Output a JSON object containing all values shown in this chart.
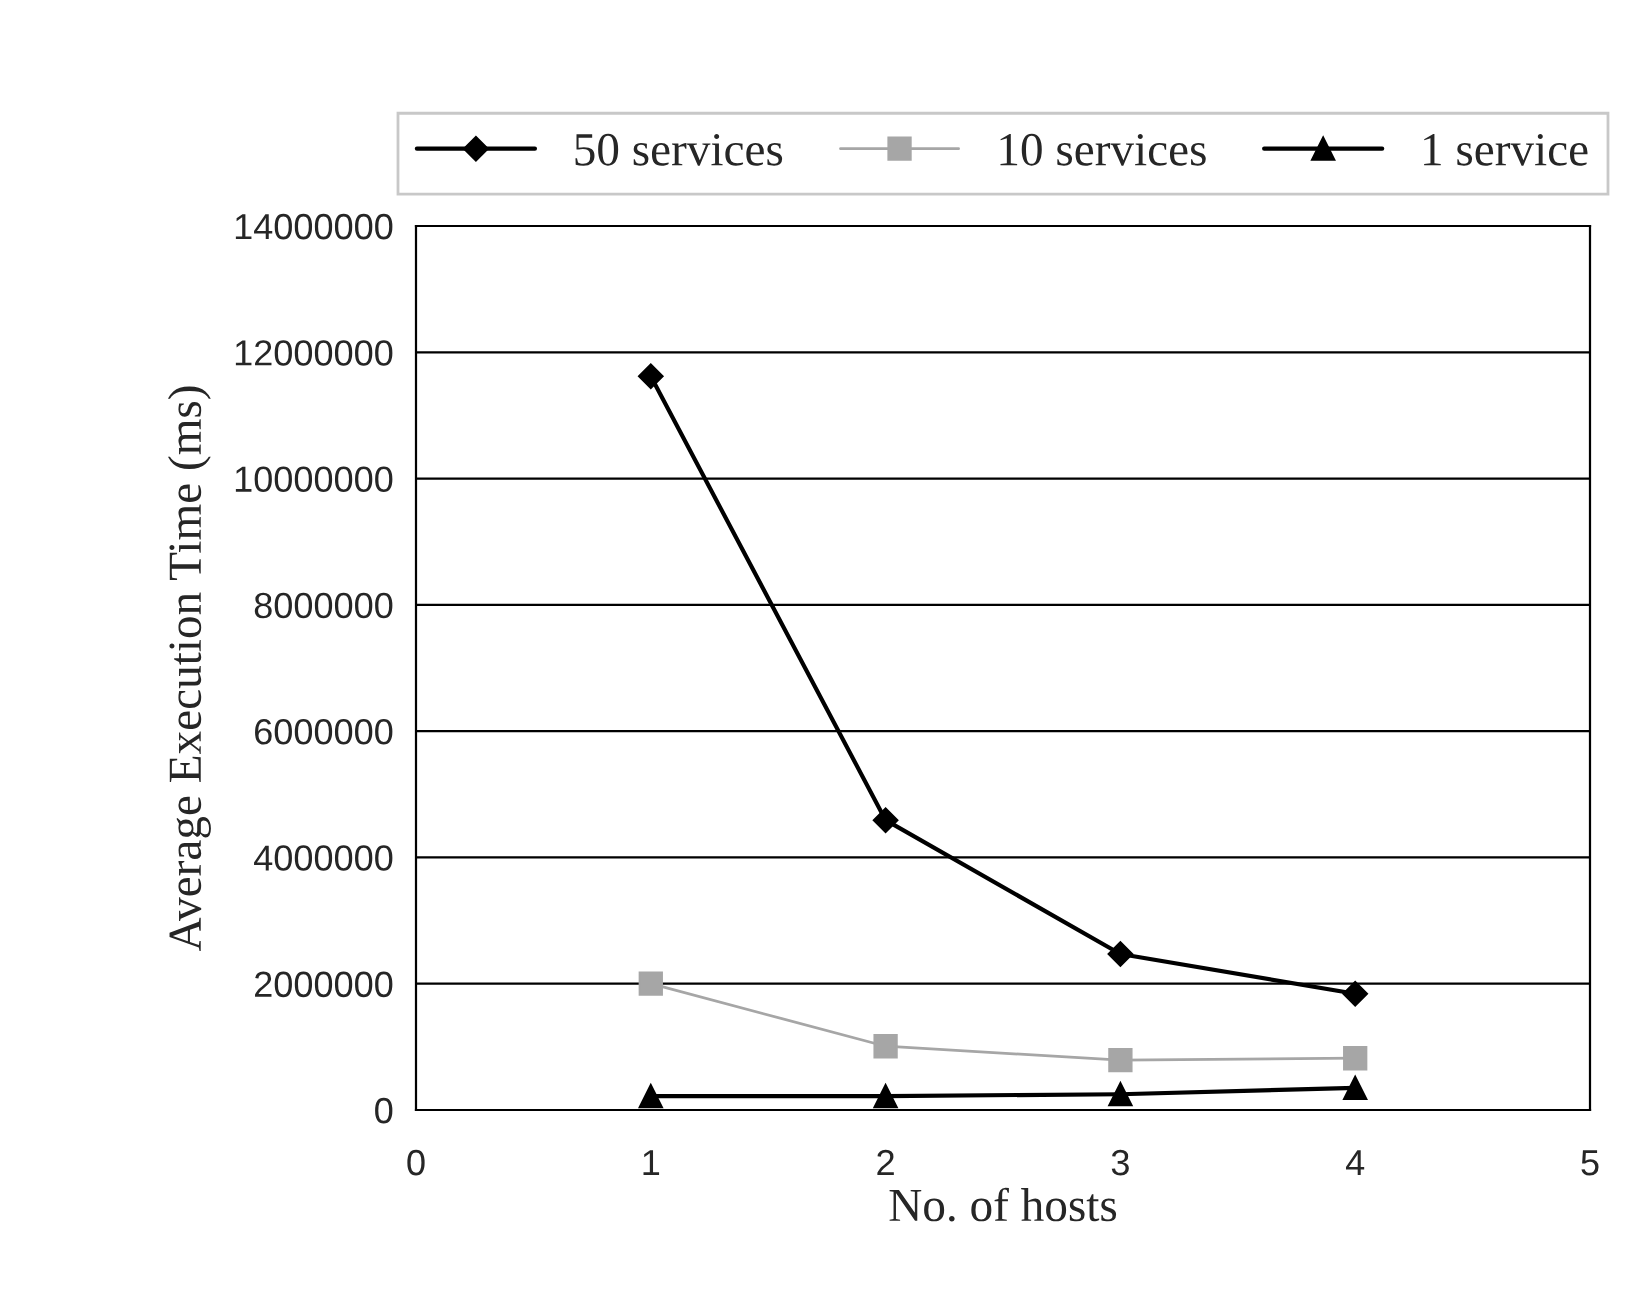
{
  "chart_data": {
    "type": "line",
    "xlabel": "No. of hosts",
    "ylabel": "Average Execution Time (ms)",
    "x": [
      1,
      2,
      3,
      4
    ],
    "series": [
      {
        "name": "50 services",
        "color": "#000000",
        "marker": "diamond",
        "values": [
          11620000,
          4590000,
          2470000,
          1840000
        ]
      },
      {
        "name": "10 services",
        "color": "#a6a6a6",
        "marker": "square",
        "values": [
          2000000,
          1010000,
          790000,
          820000
        ]
      },
      {
        "name": "1 service",
        "color": "#000000",
        "marker": "triangle",
        "values": [
          220000,
          220000,
          250000,
          350000
        ]
      }
    ],
    "xlim": [
      0,
      5
    ],
    "xticks": [
      0,
      1,
      2,
      3,
      4,
      5
    ],
    "ylim": [
      0,
      14000000
    ],
    "yticks": [
      0,
      2000000,
      4000000,
      6000000,
      8000000,
      10000000,
      12000000,
      14000000
    ],
    "grid": "y",
    "legend": "top",
    "line_style": "solid"
  }
}
